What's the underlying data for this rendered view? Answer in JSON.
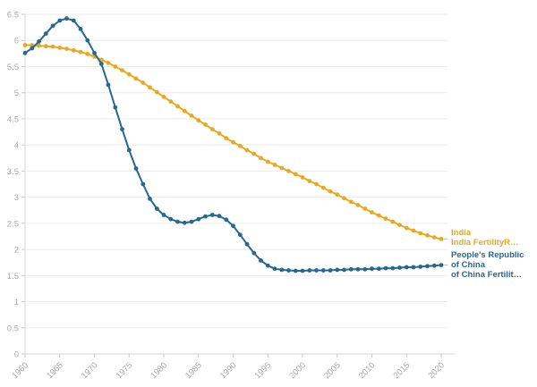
{
  "chart_data": {
    "type": "line",
    "title": "",
    "xlabel": "",
    "ylabel": "",
    "grid": "horizontal",
    "legend_position": "right-end-labels",
    "marker": "circle",
    "xlim": [
      1960,
      2020
    ],
    "ylim": [
      0,
      6.5
    ],
    "y_ticks": [
      0,
      0.5,
      1,
      1.5,
      2,
      2.5,
      3,
      3.5,
      4,
      4.5,
      5,
      5.5,
      6,
      6.5
    ],
    "x_tick_labels": [
      "1960",
      "1965",
      "1970",
      "1975",
      "1980",
      "1985",
      "1990",
      "1995",
      "2000",
      "2005",
      "2010",
      "2015",
      "2020"
    ],
    "years": [
      1960,
      1961,
      1962,
      1963,
      1964,
      1965,
      1966,
      1967,
      1968,
      1969,
      1970,
      1971,
      1972,
      1973,
      1974,
      1975,
      1976,
      1977,
      1978,
      1979,
      1980,
      1981,
      1982,
      1983,
      1984,
      1985,
      1986,
      1987,
      1988,
      1989,
      1990,
      1991,
      1992,
      1993,
      1994,
      1995,
      1996,
      1997,
      1998,
      1999,
      2000,
      2001,
      2002,
      2003,
      2004,
      2005,
      2006,
      2007,
      2008,
      2009,
      2010,
      2011,
      2012,
      2013,
      2014,
      2015,
      2016,
      2017,
      2018,
      2019,
      2020
    ],
    "series": [
      {
        "id": "india",
        "name": "India",
        "label_lines": [
          "India",
          "India FertilityR…"
        ],
        "color": "#E8A820",
        "values": [
          5.91,
          5.91,
          5.9,
          5.89,
          5.88,
          5.86,
          5.84,
          5.81,
          5.78,
          5.74,
          5.69,
          5.63,
          5.57,
          5.5,
          5.43,
          5.35,
          5.27,
          5.19,
          5.1,
          5.01,
          4.92,
          4.83,
          4.74,
          4.65,
          4.56,
          4.47,
          4.39,
          4.3,
          4.22,
          4.13,
          4.05,
          3.98,
          3.9,
          3.83,
          3.75,
          3.68,
          3.62,
          3.56,
          3.5,
          3.44,
          3.38,
          3.31,
          3.25,
          3.18,
          3.11,
          3.05,
          2.98,
          2.91,
          2.85,
          2.78,
          2.71,
          2.65,
          2.59,
          2.53,
          2.47,
          2.41,
          2.36,
          2.31,
          2.27,
          2.23,
          2.2
        ]
      },
      {
        "id": "china",
        "name": "People's Republic of China",
        "label_lines": [
          "People's Republic",
          "of China",
          "of China Fertilit…"
        ],
        "color": "#26688F",
        "values": [
          5.76,
          5.85,
          5.98,
          6.13,
          6.28,
          6.38,
          6.42,
          6.38,
          6.22,
          6.0,
          5.76,
          5.55,
          5.15,
          4.72,
          4.3,
          3.9,
          3.55,
          3.25,
          2.97,
          2.78,
          2.66,
          2.58,
          2.53,
          2.51,
          2.53,
          2.58,
          2.63,
          2.66,
          2.64,
          2.57,
          2.45,
          2.28,
          2.1,
          1.93,
          1.79,
          1.69,
          1.63,
          1.61,
          1.6,
          1.59,
          1.59,
          1.6,
          1.6,
          1.6,
          1.6,
          1.61,
          1.61,
          1.62,
          1.62,
          1.62,
          1.63,
          1.63,
          1.64,
          1.64,
          1.65,
          1.66,
          1.66,
          1.67,
          1.68,
          1.69,
          1.7
        ]
      }
    ]
  },
  "colors": {
    "background": "#ffffff",
    "gridline": "#EBEBEB",
    "axis_line": "#D6D6D6",
    "tick_mark": "#C9C9C9",
    "tick_label": "#ABABAB",
    "series_end_tick": "#BBBBBB"
  }
}
